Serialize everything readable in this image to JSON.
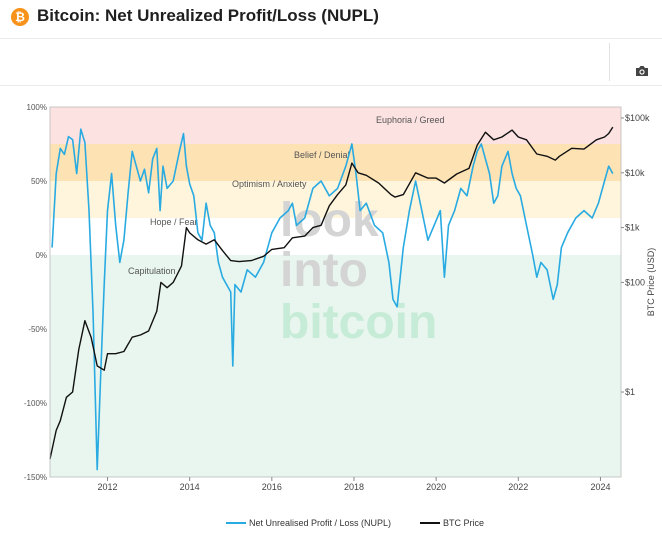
{
  "header": {
    "logo_glyph": "₿",
    "title": "Bitcoin: Net Unrealized Profit/Loss (NUPL)"
  },
  "toolbar": {
    "camera_icon": "camera-icon"
  },
  "watermark": {
    "line1": "look",
    "line2": "into",
    "line3": "bitcoin"
  },
  "chart_data": {
    "type": "line",
    "title": "Bitcoin: Net Unrealized Profit/Loss (NUPL)",
    "x_ticks": [
      "2012",
      "2014",
      "2016",
      "2018",
      "2020",
      "2022",
      "2024"
    ],
    "xlim": [
      2010.6,
      2024.5
    ],
    "left_axis": {
      "label": "",
      "ticks": [
        "100%",
        "50%",
        "0%",
        "-50%",
        "-100%",
        "-150%"
      ],
      "ylim": [
        -1.5,
        1.0
      ]
    },
    "right_axis": {
      "label": "BTC Price (USD)",
      "ticks": [
        "$100k",
        "$10k",
        "$1k",
        "$100",
        "$1"
      ],
      "scale": "log",
      "ylim_log10": [
        -1.55,
        5.2
      ]
    },
    "zones": [
      {
        "name": "Euphoria / Greed",
        "from": 0.75,
        "to": 1.0,
        "color": "#fde2e2"
      },
      {
        "name": "Belief / Denial",
        "from": 0.5,
        "to": 0.75,
        "color": "#fde2b4"
      },
      {
        "name": "Optimism / Anxiety",
        "from": 0.25,
        "to": 0.5,
        "color": "#fef5dc"
      },
      {
        "name": "Hope / Fear",
        "from": 0.0,
        "to": 0.25,
        "color": "#ffffff"
      },
      {
        "name": "Capitulation",
        "from": -1.5,
        "to": 0.0,
        "color": "#e8f6ef"
      }
    ],
    "series": [
      {
        "name": "Net Unrealised Profit / Loss (NUPL)",
        "color": "#29abe2",
        "axis": "left",
        "x": [
          2010.65,
          2010.75,
          2010.85,
          2010.95,
          2011.05,
          2011.15,
          2011.25,
          2011.35,
          2011.45,
          2011.55,
          2011.65,
          2011.75,
          2011.85,
          2011.92,
          2012.0,
          2012.1,
          2012.2,
          2012.3,
          2012.4,
          2012.5,
          2012.6,
          2012.7,
          2012.8,
          2012.9,
          2013.0,
          2013.1,
          2013.2,
          2013.28,
          2013.35,
          2013.45,
          2013.6,
          2013.75,
          2013.85,
          2013.92,
          2014.0,
          2014.1,
          2014.2,
          2014.3,
          2014.4,
          2014.5,
          2014.6,
          2014.7,
          2014.8,
          2014.9,
          2015.0,
          2015.05,
          2015.1,
          2015.25,
          2015.4,
          2015.6,
          2015.8,
          2016.0,
          2016.2,
          2016.4,
          2016.5,
          2016.6,
          2016.8,
          2017.0,
          2017.2,
          2017.4,
          2017.6,
          2017.8,
          2017.95,
          2018.05,
          2018.15,
          2018.3,
          2018.5,
          2018.7,
          2018.85,
          2018.95,
          2019.05,
          2019.2,
          2019.35,
          2019.5,
          2019.65,
          2019.8,
          2019.95,
          2020.1,
          2020.2,
          2020.3,
          2020.45,
          2020.6,
          2020.75,
          2020.9,
          2021.0,
          2021.1,
          2021.2,
          2021.3,
          2021.4,
          2021.5,
          2021.6,
          2021.75,
          2021.85,
          2021.95,
          2022.05,
          2022.2,
          2022.35,
          2022.45,
          2022.55,
          2022.7,
          2022.85,
          2022.95,
          2023.05,
          2023.2,
          2023.4,
          2023.6,
          2023.8,
          2023.95,
          2024.05,
          2024.15,
          2024.2,
          2024.3
        ],
        "y": [
          0.05,
          0.55,
          0.72,
          0.68,
          0.8,
          0.78,
          0.55,
          0.85,
          0.76,
          0.3,
          -0.4,
          -1.45,
          -0.7,
          -0.2,
          0.3,
          0.55,
          0.2,
          -0.05,
          0.1,
          0.42,
          0.7,
          0.6,
          0.5,
          0.58,
          0.42,
          0.65,
          0.72,
          0.3,
          0.6,
          0.45,
          0.5,
          0.7,
          0.82,
          0.6,
          0.48,
          0.4,
          0.15,
          0.1,
          0.35,
          0.2,
          0.15,
          -0.05,
          -0.15,
          -0.2,
          -0.25,
          -0.75,
          -0.2,
          -0.25,
          -0.1,
          -0.15,
          -0.05,
          0.15,
          0.25,
          0.3,
          0.35,
          0.2,
          0.25,
          0.45,
          0.5,
          0.4,
          0.45,
          0.6,
          0.75,
          0.55,
          0.3,
          0.35,
          0.2,
          0.15,
          -0.05,
          -0.3,
          -0.35,
          0.05,
          0.3,
          0.5,
          0.3,
          0.1,
          0.2,
          0.3,
          -0.15,
          0.2,
          0.3,
          0.45,
          0.4,
          0.6,
          0.7,
          0.75,
          0.65,
          0.55,
          0.35,
          0.4,
          0.6,
          0.7,
          0.55,
          0.45,
          0.4,
          0.2,
          0.0,
          -0.15,
          -0.05,
          -0.1,
          -0.3,
          -0.2,
          0.05,
          0.15,
          0.25,
          0.3,
          0.25,
          0.35,
          0.45,
          0.55,
          0.6,
          0.55
        ]
      },
      {
        "name": "BTC Price",
        "color": "#111111",
        "axis": "right",
        "x": [
          2010.6,
          2010.75,
          2010.85,
          2011.0,
          2011.15,
          2011.3,
          2011.45,
          2011.6,
          2011.75,
          2011.92,
          2012.0,
          2012.2,
          2012.4,
          2012.6,
          2012.8,
          2013.0,
          2013.2,
          2013.3,
          2013.45,
          2013.6,
          2013.8,
          2013.92,
          2014.0,
          2014.2,
          2014.4,
          2014.6,
          2014.8,
          2015.0,
          2015.2,
          2015.5,
          2015.8,
          2016.0,
          2016.3,
          2016.5,
          2016.8,
          2017.0,
          2017.2,
          2017.4,
          2017.6,
          2017.8,
          2017.95,
          2018.1,
          2018.3,
          2018.6,
          2018.9,
          2019.0,
          2019.2,
          2019.5,
          2019.8,
          2020.0,
          2020.2,
          2020.5,
          2020.8,
          2021.0,
          2021.2,
          2021.4,
          2021.6,
          2021.85,
          2022.0,
          2022.2,
          2022.45,
          2022.7,
          2022.9,
          2023.0,
          2023.3,
          2023.6,
          2023.9,
          2024.1,
          2024.2,
          2024.3
        ],
        "y": [
          0.06,
          0.2,
          0.3,
          0.8,
          1.0,
          6.0,
          20.0,
          10.0,
          3.0,
          2.5,
          5.0,
          5.0,
          5.5,
          10.0,
          11.0,
          13.0,
          30.0,
          100.0,
          80.0,
          100.0,
          200.0,
          1000.0,
          800.0,
          600.0,
          500.0,
          600.0,
          380.0,
          250.0,
          240.0,
          250.0,
          300.0,
          400.0,
          430.0,
          650.0,
          700.0,
          1000.0,
          1100.0,
          2500.0,
          4000.0,
          6000.0,
          15000.0,
          10000.0,
          9000.0,
          6500.0,
          4000.0,
          3600.0,
          4000.0,
          10000.0,
          8000.0,
          8000.0,
          6500.0,
          9500.0,
          12000.0,
          32000.0,
          55000.0,
          40000.0,
          45000.0,
          60000.0,
          45000.0,
          40000.0,
          22000.0,
          20000.0,
          17000.0,
          20000.0,
          28000.0,
          27000.0,
          40000.0,
          45000.0,
          52000.0,
          68000.0
        ]
      }
    ]
  },
  "legend": {
    "items": [
      {
        "label": "Net Unrealised Profit / Loss (NUPL)",
        "color": "#29abe2"
      },
      {
        "label": "BTC Price",
        "color": "#111111"
      }
    ]
  }
}
